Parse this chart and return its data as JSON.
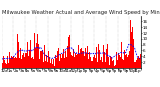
{
  "title": "Milwaukee Weather Actual and Average Wind Speed by Minute mph (Last 24 Hours)",
  "background_color": "#ffffff",
  "bar_color": "#ff0000",
  "line_color": "#0000ff",
  "n_points": 1440,
  "y_max": 18,
  "y_ticks": [
    2,
    4,
    6,
    8,
    10,
    12,
    14,
    16
  ],
  "grid_color": "#cccccc",
  "title_fontsize": 3.8,
  "tick_fontsize": 3.0,
  "figsize": [
    1.6,
    0.87
  ],
  "dpi": 100
}
